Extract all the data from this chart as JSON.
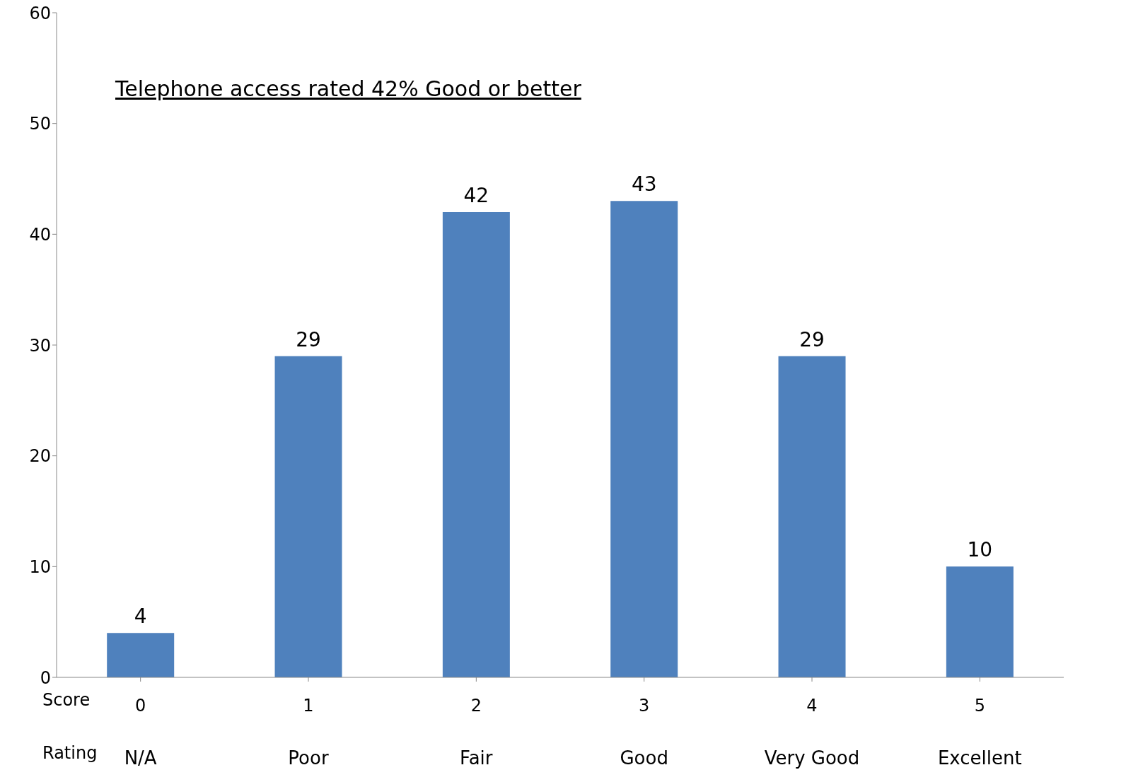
{
  "chart_data": {
    "type": "bar",
    "title": "Telephone access rated 42% Good or better",
    "categories": [
      "N/A",
      "Poor",
      "Fair",
      "Good",
      "Very Good",
      "Excellent"
    ],
    "values": [
      4,
      29,
      42,
      43,
      29,
      10
    ],
    "color": "#4f81bd",
    "ylim": [
      0,
      60
    ],
    "yticks": [
      0,
      10,
      20,
      30,
      40,
      50,
      60
    ],
    "grid": false,
    "data_labels": true,
    "annotations": [
      "Score",
      "Rating",
      {
        "text": "0",
        "x": "N/A"
      },
      {
        "text": "1",
        "x": "Poor"
      },
      {
        "text": "2",
        "x": "Fair"
      },
      {
        "text": "3",
        "x": "Good"
      },
      {
        "text": "4",
        "x": "Very Good"
      },
      {
        "text": "5",
        "x": "Excellent"
      }
    ]
  }
}
